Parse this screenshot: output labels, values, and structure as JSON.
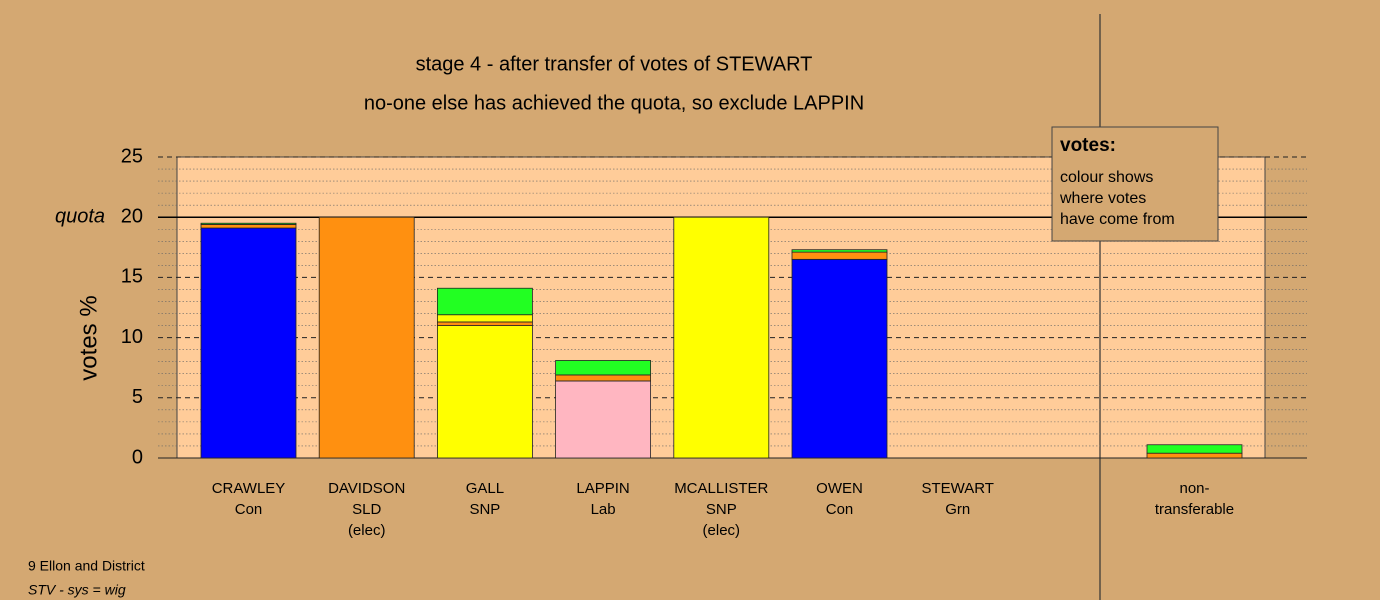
{
  "chart_data": {
    "type": "stacked-bar",
    "title": "stage 4 - after transfer of votes of STEWART",
    "subtitle": "no-one else has achieved the quota, so exclude LAPPIN",
    "y_label": "votes %",
    "categories": [
      [
        "CRAWLEY",
        "Con"
      ],
      [
        "DAVIDSON",
        "SLD",
        "(elec)"
      ],
      [
        "GALL",
        "SNP"
      ],
      [
        "LAPPIN",
        "Lab"
      ],
      [
        "MCALLISTER",
        "SNP",
        "(elec)"
      ],
      [
        "OWEN",
        "Con"
      ],
      [
        "STEWART",
        "Grn"
      ],
      [
        "non-",
        "transferable"
      ]
    ],
    "series": [
      {
        "colors": [
          "#0000ff",
          "#ff9010",
          "#ffff00",
          "#ffb6c1",
          "#ffff00",
          "#0000ff",
          "#22ff22",
          "#808080"
        ],
        "values": [
          19.1,
          20,
          11.0,
          6.4,
          20,
          16.5,
          0,
          0
        ]
      },
      {
        "color": "#ff9010",
        "values": [
          0.3,
          0,
          0.3,
          0.5,
          0,
          0.6,
          0,
          0.4
        ]
      },
      {
        "color": "#ffff00",
        "values": [
          0,
          0,
          0.6,
          0,
          0,
          0,
          0,
          0
        ]
      },
      {
        "color": "#22ff22",
        "values": [
          0.1,
          0,
          2.2,
          1.2,
          0,
          0.2,
          0,
          0.7
        ]
      }
    ],
    "ylim": [
      0,
      25
    ],
    "yticks": [
      0,
      5,
      10,
      15,
      20,
      25
    ],
    "minor_yticks": [
      1,
      2,
      3,
      4,
      6,
      7,
      8,
      9,
      11,
      12,
      13,
      14,
      16,
      17,
      18,
      19,
      21,
      22,
      23,
      24
    ],
    "quota": {
      "value": 20,
      "label": "quota"
    },
    "note_box": {
      "title": "votes:",
      "lines": [
        "colour shows",
        "where votes",
        "have come from"
      ]
    },
    "footer": [
      "9 Ellon and District",
      "STV - sys = wig"
    ]
  }
}
